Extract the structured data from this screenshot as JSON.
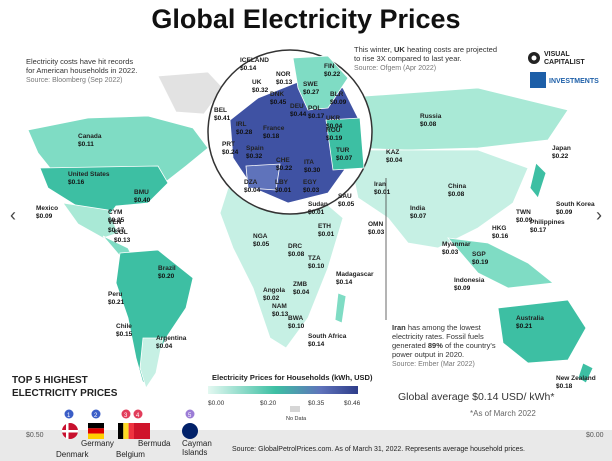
{
  "title": "Global Electricity Prices",
  "brand": {
    "line1": "VISUAL",
    "line2": "CAPITALIST",
    "investments": "INVESTMENTS"
  },
  "notes": {
    "us": {
      "line1": "Electricity costs have hit records",
      "line2": "for American households in 2022.",
      "source": "Source: Bloomberg (Sep 2022)"
    },
    "uk": {
      "line1_pre": "This winter, ",
      "line1_bold": "UK",
      "line1_post": " heating costs are projected",
      "line2": "to rise 3X compared to last year.",
      "source": "Source: Ofgem (Apr 2022)"
    },
    "iran": {
      "line1_bold": "Iran",
      "line1_post": " has among the lowest",
      "line2": "electricity rates. Fossil fuels",
      "line3_pre": "generated ",
      "line3_bold": "89%",
      "line3_post": " of the country's",
      "line4": "power output in 2020.",
      "source": "Source: Ember (Mar 2022)"
    }
  },
  "countries": [
    {
      "name": "Canada",
      "value": "$0.11"
    },
    {
      "name": "United States",
      "value": "$0.16"
    },
    {
      "name": "Mexico",
      "value": "$0.09"
    },
    {
      "name": "BMU",
      "value": "$0.40"
    },
    {
      "name": "CYM",
      "value": "$0.35"
    },
    {
      "name": "VEN",
      "value": "$0.17"
    },
    {
      "name": "COL",
      "value": "$0.13"
    },
    {
      "name": "Brazil",
      "value": "$0.20"
    },
    {
      "name": "Peru",
      "value": "$0.21"
    },
    {
      "name": "Chile",
      "value": "$0.15"
    },
    {
      "name": "Argentina",
      "value": "$0.04"
    },
    {
      "name": "ICELAND",
      "value": "$0.14"
    },
    {
      "name": "NOR",
      "value": "$0.13"
    },
    {
      "name": "FIN",
      "value": "$0.22"
    },
    {
      "name": "SWE",
      "value": "$0.27"
    },
    {
      "name": "UK",
      "value": "$0.32"
    },
    {
      "name": "DNK",
      "value": "$0.45"
    },
    {
      "name": "BEL",
      "value": "$0.41"
    },
    {
      "name": "IRL",
      "value": "$0.28"
    },
    {
      "name": "DEU",
      "value": "$0.44"
    },
    {
      "name": "POL",
      "value": "$0.17"
    },
    {
      "name": "BLR",
      "value": "$0.09"
    },
    {
      "name": "UKR",
      "value": "$0.04"
    },
    {
      "name": "France",
      "value": "$0.18"
    },
    {
      "name": "ROU",
      "value": "$0.19"
    },
    {
      "name": "PRT",
      "value": "$0.24"
    },
    {
      "name": "Spain",
      "value": "$0.32"
    },
    {
      "name": "CHE",
      "value": "$0.22"
    },
    {
      "name": "ITA",
      "value": "$0.30"
    },
    {
      "name": "TUR",
      "value": "$0.07"
    },
    {
      "name": "Russia",
      "value": "$0.08"
    },
    {
      "name": "KAZ",
      "value": "$0.04"
    },
    {
      "name": "China",
      "value": "$0.08"
    },
    {
      "name": "Japan",
      "value": "$0.22"
    },
    {
      "name": "South Korea",
      "value": "$0.09"
    },
    {
      "name": "Iran",
      "value": "$0.01"
    },
    {
      "name": "DZA",
      "value": "$0.04"
    },
    {
      "name": "LBY",
      "value": "$0.01"
    },
    {
      "name": "EGY",
      "value": "$0.03"
    },
    {
      "name": "SAU",
      "value": "$0.05"
    },
    {
      "name": "OMN",
      "value": "$0.03"
    },
    {
      "name": "India",
      "value": "$0.07"
    },
    {
      "name": "Myanmar",
      "value": "$0.03"
    },
    {
      "name": "TWN",
      "value": "$0.09"
    },
    {
      "name": "HKG",
      "value": "$0.16"
    },
    {
      "name": "Philippines",
      "value": "$0.17"
    },
    {
      "name": "SGP",
      "value": "$0.19"
    },
    {
      "name": "Indonesia",
      "value": "$0.09"
    },
    {
      "name": "Sudan",
      "value": "$0.01"
    },
    {
      "name": "ETH",
      "value": "$0.01"
    },
    {
      "name": "NGA",
      "value": "$0.05"
    },
    {
      "name": "DRC",
      "value": "$0.08"
    },
    {
      "name": "TZA",
      "value": "$0.10"
    },
    {
      "name": "Angola",
      "value": "$0.02"
    },
    {
      "name": "ZMB",
      "value": "$0.04"
    },
    {
      "name": "NAM",
      "value": "$0.13"
    },
    {
      "name": "BWA",
      "value": "$0.10"
    },
    {
      "name": "Madagascar",
      "value": "$0.14"
    },
    {
      "name": "South Africa",
      "value": "$0.14"
    },
    {
      "name": "Australia",
      "value": "$0.21"
    },
    {
      "name": "New Zealand",
      "value": "$0.18"
    }
  ],
  "legend": {
    "title": "Electricity Prices for Households (kWh, USD)",
    "ticks": [
      "$0.00",
      "$0.20",
      "$0.35",
      "$0.46"
    ],
    "no_data": "No Data"
  },
  "global_average": {
    "text": "Global average $0.14 USD/ kWh*",
    "footnote": "*As of March 2022"
  },
  "top5": {
    "title_line1": "TOP 5 HIGHEST",
    "title_line2": "ELECTRICITY PRICES",
    "items": [
      {
        "rank": "1",
        "name": "Denmark"
      },
      {
        "rank": "2",
        "name": "Germany"
      },
      {
        "rank": "3",
        "name": "Belgium"
      },
      {
        "rank": "4",
        "name": "Bermuda"
      },
      {
        "rank": "5",
        "name": "Cayman Islands"
      }
    ]
  },
  "benchmark": {
    "left": "$0.50",
    "right": "$0.00"
  },
  "source_footer": "Source: GlobalPetrolPrices.com. As of March 31, 2022. Represents average household prices.",
  "nav": {
    "prev": "‹",
    "next": "›"
  },
  "colors": {
    "low": "#c6f0e4",
    "mid": "#3dbfa3",
    "high": "#3f52a3",
    "ocean": "#ffffff",
    "nodata": "#d6d6d6"
  }
}
